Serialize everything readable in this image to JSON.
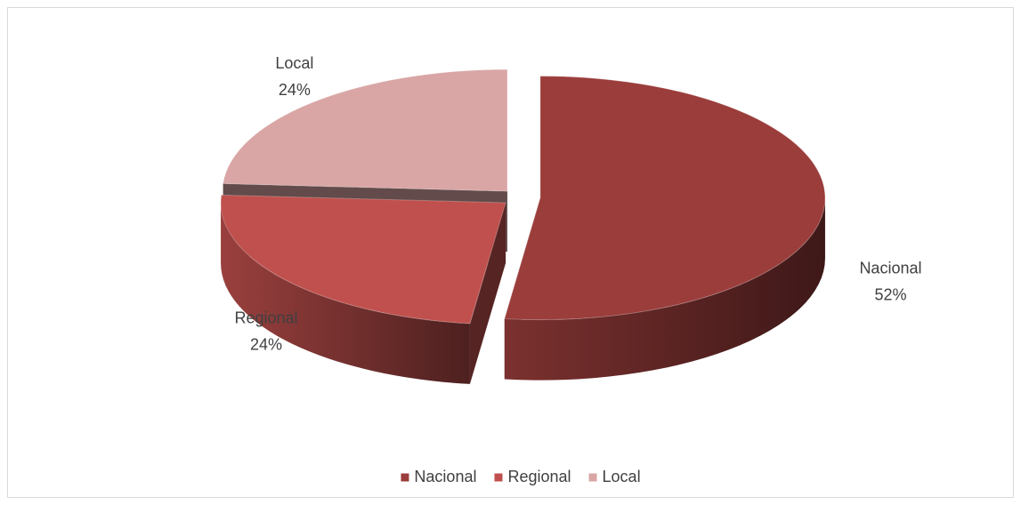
{
  "chart_data": {
    "type": "pie3d",
    "categories": [
      "Nacional",
      "Regional",
      "Local"
    ],
    "values": [
      52,
      24,
      24
    ],
    "value_labels": [
      "52%",
      "24%",
      "24%"
    ],
    "colors": [
      "#9a3d3b",
      "#c0504d",
      "#d9a6a5"
    ],
    "legend": "bottom"
  }
}
